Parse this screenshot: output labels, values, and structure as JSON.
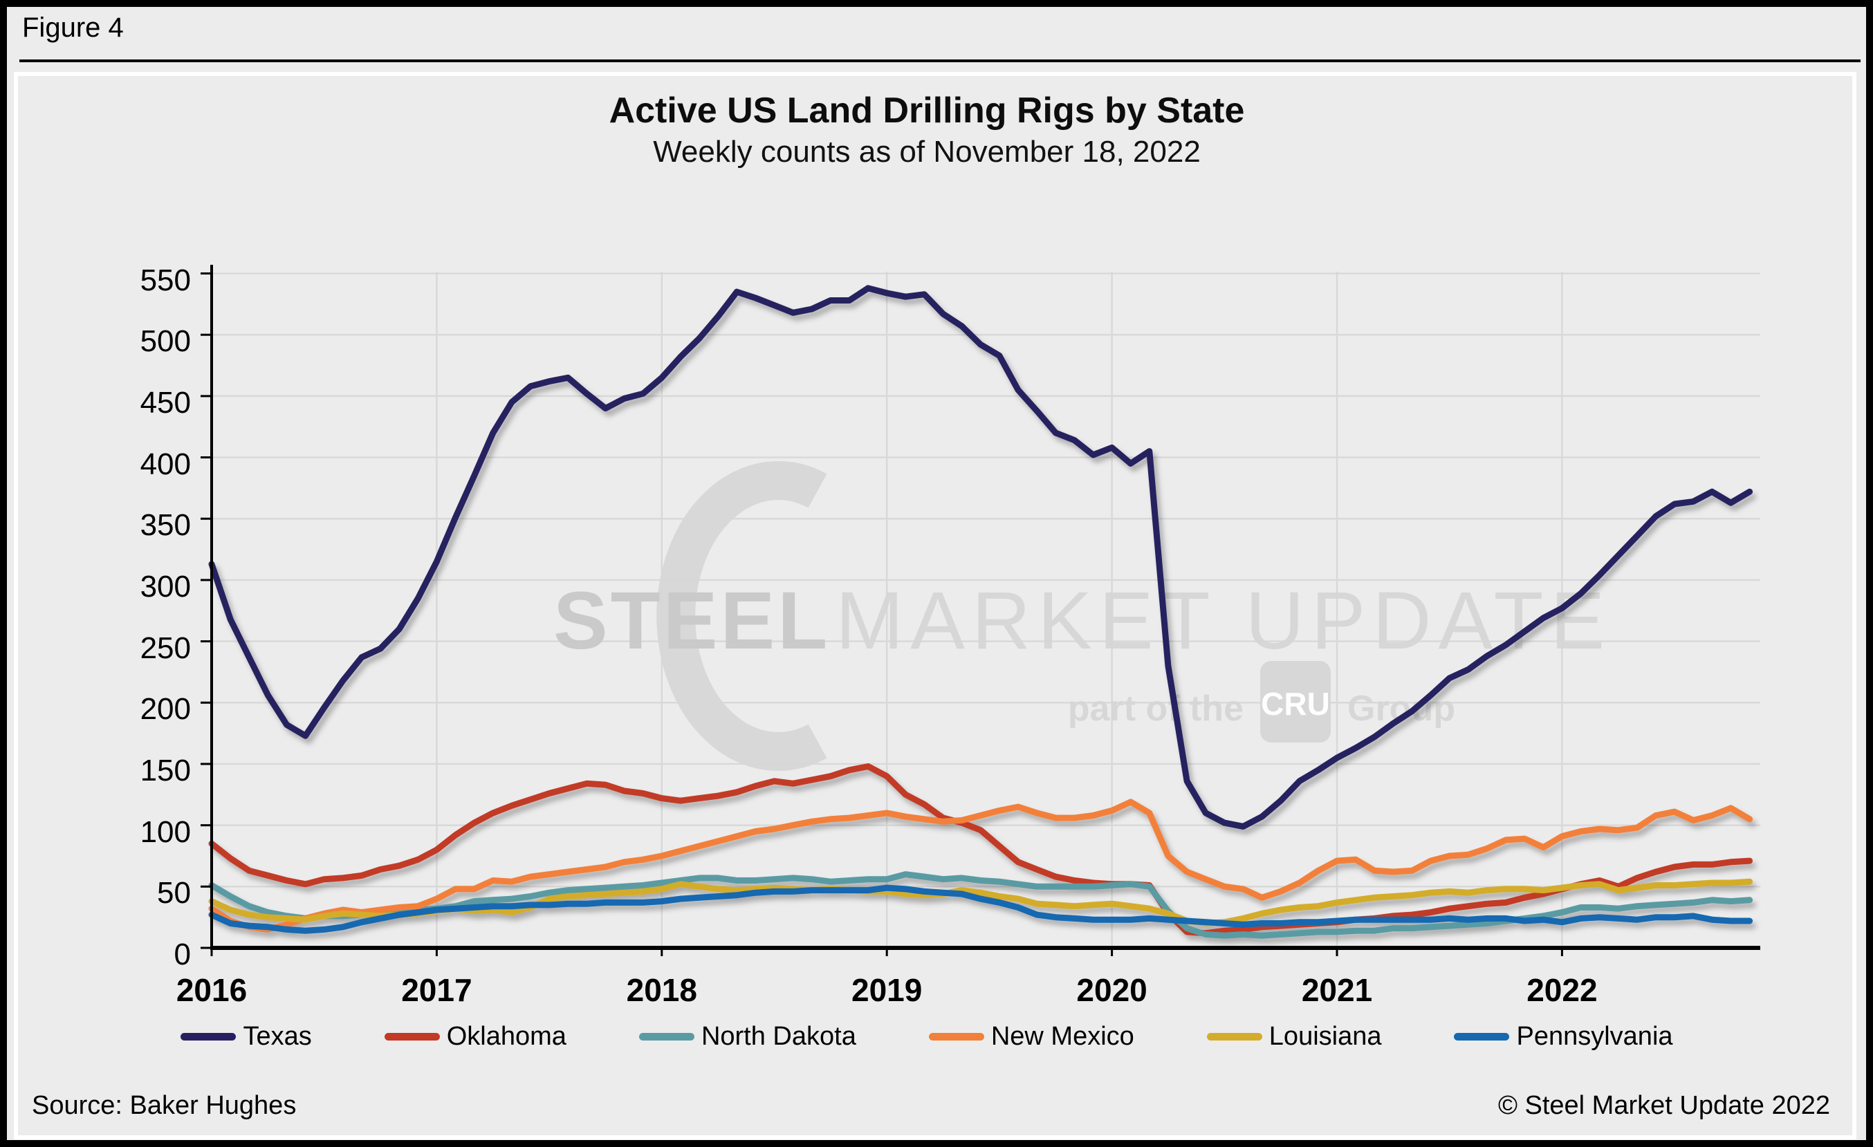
{
  "figure_label": "Figure 4",
  "source": "Source: Baker Hughes",
  "copyright": "© Steel Market Update 2022",
  "watermark": {
    "brand_bold": "STEEL",
    "brand_light": "MARKET UPDATE",
    "tagline_prefix": "part of the",
    "tagline_logo": "CRU",
    "tagline_suffix": "Group"
  },
  "chart_data": {
    "type": "line",
    "title": "Active US Land Drilling Rigs by State",
    "subtitle": "Weekly counts as of November 18, 2022",
    "x_start_year": 2016,
    "x_step_months": 1,
    "x_tick_labels": [
      "2016",
      "2017",
      "2018",
      "2019",
      "2020",
      "2021",
      "2022"
    ],
    "y_ticks": [
      0,
      50,
      100,
      150,
      200,
      250,
      300,
      350,
      400,
      450,
      500,
      550
    ],
    "ylim": [
      0,
      550
    ],
    "xlim": [
      2016.0,
      2022.88
    ],
    "grid": true,
    "legend_position": "bottom",
    "colors": {
      "background": "#ececec",
      "gridline": "#d8d8d8",
      "axis": "#000000",
      "watermark": "#d3d3d3"
    },
    "series": [
      {
        "name": "Texas",
        "color": "#272060",
        "values": [
          313,
          268,
          237,
          206,
          182,
          173,
          196,
          218,
          237,
          244,
          260,
          285,
          315,
          351,
          385,
          420,
          445,
          458,
          462,
          465,
          452,
          440,
          448,
          452,
          465,
          482,
          497,
          515,
          535,
          530,
          524,
          518,
          521,
          528,
          528,
          538,
          534,
          531,
          533,
          517,
          507,
          492,
          483,
          455,
          438,
          420,
          414,
          402,
          408,
          395,
          405,
          230,
          136,
          110,
          102,
          99,
          107,
          120,
          136,
          145,
          155,
          163,
          172,
          183,
          193,
          206,
          220,
          227,
          238,
          247,
          258,
          269,
          277,
          289,
          304,
          320,
          336,
          352,
          362,
          364,
          372,
          363,
          372
        ]
      },
      {
        "name": "Oklahoma",
        "color": "#c23a26",
        "values": [
          85,
          73,
          63,
          59,
          55,
          52,
          56,
          57,
          59,
          64,
          67,
          72,
          80,
          92,
          102,
          110,
          116,
          121,
          126,
          130,
          134,
          133,
          128,
          126,
          122,
          120,
          122,
          124,
          127,
          132,
          136,
          134,
          137,
          140,
          145,
          148,
          140,
          125,
          117,
          106,
          102,
          96,
          83,
          70,
          64,
          58,
          55,
          53,
          52,
          52,
          51,
          28,
          13,
          12,
          14,
          15,
          17,
          18,
          19,
          20,
          21,
          23,
          24,
          26,
          27,
          29,
          32,
          34,
          36,
          37,
          41,
          44,
          48,
          52,
          55,
          50,
          57,
          62,
          66,
          68,
          68,
          70,
          71
        ]
      },
      {
        "name": "North Dakota",
        "color": "#5a9ba3",
        "values": [
          51,
          42,
          34,
          29,
          26,
          24,
          26,
          26,
          27,
          28,
          30,
          31,
          32,
          34,
          38,
          39,
          40,
          42,
          45,
          47,
          48,
          49,
          50,
          51,
          53,
          55,
          57,
          57,
          55,
          55,
          56,
          57,
          56,
          54,
          55,
          56,
          56,
          60,
          58,
          56,
          57,
          55,
          54,
          52,
          50,
          50,
          50,
          50,
          51,
          52,
          50,
          30,
          16,
          11,
          10,
          11,
          10,
          11,
          12,
          13,
          13,
          14,
          14,
          16,
          16,
          17,
          18,
          19,
          20,
          22,
          24,
          26,
          29,
          33,
          33,
          32,
          34,
          35,
          36,
          37,
          39,
          38,
          39
        ]
      },
      {
        "name": "New Mexico",
        "color": "#f2803a",
        "values": [
          32,
          22,
          17,
          15,
          19,
          24,
          28,
          31,
          29,
          31,
          33,
          34,
          40,
          48,
          48,
          55,
          54,
          58,
          60,
          62,
          64,
          66,
          70,
          72,
          75,
          79,
          83,
          87,
          91,
          95,
          97,
          100,
          103,
          105,
          106,
          108,
          110,
          107,
          105,
          103,
          104,
          108,
          112,
          115,
          110,
          106,
          106,
          108,
          112,
          119,
          110,
          75,
          62,
          56,
          50,
          48,
          41,
          46,
          53,
          63,
          71,
          72,
          63,
          62,
          63,
          71,
          75,
          76,
          81,
          88,
          89,
          82,
          91,
          95,
          97,
          96,
          98,
          108,
          111,
          104,
          108,
          114,
          105
        ]
      },
      {
        "name": "Louisiana",
        "color": "#d3ac2b",
        "values": [
          38,
          31,
          27,
          25,
          24,
          23,
          26,
          28,
          27,
          26,
          27,
          28,
          30,
          32,
          30,
          31,
          29,
          33,
          40,
          42,
          43,
          44,
          45,
          46,
          48,
          52,
          50,
          48,
          47,
          48,
          49,
          48,
          47,
          48,
          47,
          46,
          46,
          44,
          43,
          44,
          47,
          45,
          42,
          40,
          36,
          35,
          34,
          35,
          36,
          34,
          32,
          28,
          22,
          20,
          21,
          24,
          28,
          31,
          33,
          34,
          37,
          39,
          41,
          42,
          43,
          45,
          46,
          45,
          47,
          48,
          48,
          47,
          49,
          51,
          52,
          47,
          49,
          51,
          51,
          52,
          53,
          53,
          54
        ]
      },
      {
        "name": "Pennsylvania",
        "color": "#1668b0",
        "values": [
          27,
          20,
          18,
          17,
          15,
          14,
          15,
          17,
          21,
          24,
          27,
          29,
          31,
          32,
          33,
          34,
          34,
          35,
          35,
          36,
          36,
          37,
          37,
          37,
          38,
          40,
          41,
          42,
          43,
          45,
          46,
          46,
          47,
          47,
          47,
          47,
          49,
          48,
          46,
          45,
          44,
          40,
          37,
          33,
          27,
          25,
          24,
          23,
          23,
          23,
          24,
          23,
          22,
          21,
          20,
          19,
          20,
          20,
          21,
          21,
          22,
          23,
          23,
          23,
          23,
          23,
          24,
          23,
          24,
          24,
          22,
          23,
          21,
          24,
          25,
          24,
          23,
          25,
          25,
          26,
          23,
          22,
          22
        ]
      }
    ]
  }
}
